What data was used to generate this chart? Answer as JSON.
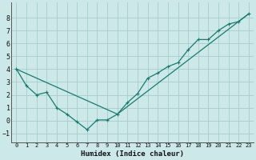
{
  "xlabel": "Humidex (Indice chaleur)",
  "background_color": "#cce8e8",
  "grid_color": "#aad0d0",
  "line_color": "#1a7a6e",
  "xlim": [
    -0.5,
    23.5
  ],
  "ylim": [
    -1.7,
    9.2
  ],
  "yticks": [
    -1,
    0,
    1,
    2,
    3,
    4,
    5,
    6,
    7,
    8
  ],
  "xticks": [
    0,
    1,
    2,
    3,
    4,
    5,
    6,
    7,
    8,
    9,
    10,
    11,
    12,
    13,
    14,
    15,
    16,
    17,
    18,
    19,
    20,
    21,
    22,
    23
  ],
  "line1_x": [
    0,
    1,
    2,
    3,
    4,
    5,
    6,
    7,
    8,
    9,
    10,
    11,
    12,
    13,
    14,
    15,
    16,
    17,
    18,
    19,
    20,
    21,
    22,
    23
  ],
  "line1_y": [
    4.0,
    2.7,
    2.0,
    2.2,
    1.0,
    0.5,
    -0.1,
    -0.7,
    0.05,
    0.05,
    0.5,
    1.4,
    2.1,
    3.3,
    3.7,
    4.2,
    4.5,
    5.5,
    6.3,
    6.3,
    7.0,
    7.5,
    7.7,
    8.3
  ],
  "line2_x": [
    0,
    10,
    23
  ],
  "line2_y": [
    4.0,
    0.5,
    8.3
  ]
}
